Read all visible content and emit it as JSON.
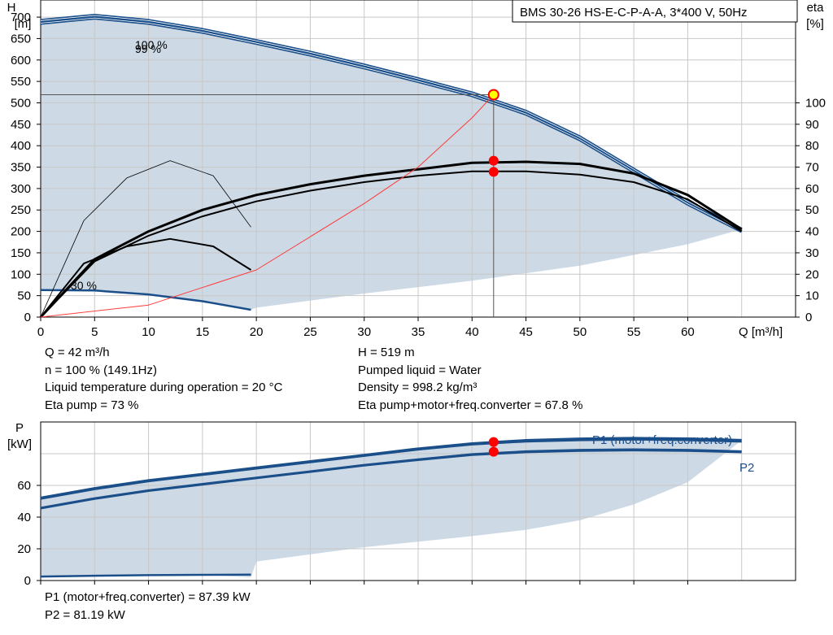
{
  "colors": {
    "curve": "#1b4f8a",
    "fill": "#cdd9e5",
    "grid": "#c8c8c8",
    "axis": "#000000",
    "op_point": "#ff0000",
    "op_point_yellow": "#ffff00",
    "system_curve": "#ff3b3b"
  },
  "title_box": "BMS 30-26 HS-E-C-P-A-A, 3*400 V, 50Hz",
  "chart_data": [
    {
      "type": "line",
      "y_axis_label": [
        "H",
        "[m]"
      ],
      "y2_axis_label": [
        "eta",
        "[%]"
      ],
      "x_axis_label": "Q [m³/h]",
      "xlim": [
        0,
        70
      ],
      "ylim": [
        0,
        740
      ],
      "y2lim": [
        0,
        148
      ],
      "x_ticks": [
        0,
        5,
        10,
        15,
        20,
        25,
        30,
        35,
        40,
        45,
        50,
        55,
        60
      ],
      "y_ticks": [
        0,
        50,
        100,
        150,
        200,
        250,
        300,
        350,
        400,
        450,
        500,
        550,
        600,
        650,
        700
      ],
      "y2_ticks": [
        0,
        10,
        20,
        30,
        40,
        50,
        60,
        70,
        80,
        90,
        100
      ],
      "curve_labels": [
        "100 %",
        "99 %",
        "30 %"
      ],
      "grid": true,
      "series": [
        {
          "name": "100 %",
          "kind": "H",
          "x": [
            0,
            5,
            10,
            15,
            20,
            25,
            30,
            35,
            40,
            45,
            50,
            55,
            60,
            65
          ],
          "y": [
            692,
            704,
            692,
            671,
            645,
            618,
            588,
            556,
            523,
            480,
            420,
            345,
            270,
            205
          ]
        },
        {
          "name": "99 %",
          "kind": "H",
          "x": [
            0,
            5,
            10,
            15,
            20,
            25,
            30,
            35,
            40,
            45,
            50,
            55,
            60,
            65
          ],
          "y": [
            686,
            698,
            686,
            665,
            639,
            612,
            582,
            550,
            517,
            474,
            414,
            339,
            264,
            200
          ]
        },
        {
          "name": "",
          "kind": "H_min",
          "x": [
            0,
            5,
            10,
            15,
            19.5
          ],
          "y": [
            63,
            62,
            53,
            37,
            17
          ]
        },
        {
          "name": "",
          "kind": "eta_100",
          "x": [
            0,
            5,
            10,
            15,
            20,
            25,
            30,
            35,
            40,
            45,
            50,
            55,
            60,
            65
          ],
          "y": [
            0,
            27,
            40,
            50,
            57,
            62,
            66,
            69,
            72,
            72.5,
            71.5,
            67,
            57,
            41
          ]
        },
        {
          "name": "",
          "kind": "eta_op",
          "x": [
            0,
            5,
            10,
            15,
            20,
            25,
            30,
            35,
            40,
            45,
            50,
            55,
            60,
            65
          ],
          "y": [
            0,
            26,
            38,
            47,
            54,
            59,
            63,
            66,
            68,
            68,
            66.5,
            63,
            55,
            40
          ]
        },
        {
          "name": "",
          "kind": "eta_30",
          "x": [
            0,
            4,
            8,
            12,
            16,
            19.5
          ],
          "y": [
            0,
            25,
            33,
            36.5,
            33,
            22
          ]
        },
        {
          "name": "",
          "kind": "eta_thin",
          "x": [
            0,
            4,
            8,
            12,
            16,
            19.5
          ],
          "y": [
            0,
            45,
            65,
            73,
            66,
            42
          ]
        },
        {
          "name": "",
          "kind": "system",
          "x": [
            0,
            10,
            20,
            30,
            35,
            40,
            42
          ],
          "y": [
            0,
            28,
            110,
            265,
            350,
            465,
            519
          ]
        }
      ],
      "area": {
        "x": [
          0,
          5,
          10,
          15,
          20,
          25,
          30,
          35,
          40,
          45,
          50,
          55,
          60,
          65,
          60,
          50,
          40,
          30,
          20,
          19.5,
          15,
          10,
          5,
          0
        ],
        "y": [
          692,
          704,
          692,
          671,
          645,
          618,
          588,
          556,
          523,
          480,
          420,
          345,
          270,
          205,
          170,
          120,
          85,
          55,
          22,
          17,
          37,
          53,
          62,
          63
        ]
      },
      "operating_point": {
        "Q": 42,
        "H": 519,
        "eta_values": [
          73,
          67.8
        ]
      }
    },
    {
      "type": "line",
      "y_axis_label": [
        "P",
        "[kW]"
      ],
      "xlim": [
        0,
        70
      ],
      "ylim": [
        0,
        100
      ],
      "x_ticks": [
        0,
        5,
        10,
        15,
        20,
        25,
        30,
        35,
        40,
        45,
        50,
        55,
        60
      ],
      "y_ticks": [
        0,
        20,
        40,
        60
      ],
      "grid": true,
      "series": [
        {
          "name": "P1 (motor+freq.converter)",
          "x": [
            0,
            5,
            10,
            15,
            20,
            25,
            30,
            35,
            40,
            45,
            50,
            55,
            60,
            65
          ],
          "y": [
            52,
            58,
            63,
            67,
            71,
            75,
            79,
            83,
            86.3,
            88.3,
            89.3,
            89.7,
            89.4,
            88.4
          ]
        },
        {
          "name": "P1 (motor+freq.converter)",
          "x": [
            0,
            5,
            10,
            15,
            20,
            25,
            30,
            35,
            40,
            45,
            50,
            55,
            60,
            65
          ],
          "y": [
            51.5,
            57.5,
            62.5,
            66.5,
            70.5,
            74.5,
            78.5,
            82.5,
            85.7,
            87.6,
            88.4,
            88.8,
            88.4,
            87.5
          ]
        },
        {
          "name": "P2",
          "x": [
            0,
            5,
            10,
            15,
            20,
            25,
            30,
            35,
            40,
            45,
            50,
            55,
            60,
            65
          ],
          "y": [
            46,
            52,
            57,
            61,
            65,
            69,
            73,
            76.5,
            79.8,
            81.6,
            82.5,
            82.8,
            82.5,
            81.6
          ]
        },
        {
          "name": "P2",
          "x": [
            0,
            5,
            10,
            15,
            20,
            25,
            30,
            35,
            40,
            45,
            50,
            55,
            60,
            65
          ],
          "y": [
            45.4,
            51.4,
            56.4,
            60.4,
            64.4,
            68.4,
            72.4,
            75.9,
            79.1,
            80.8,
            81.7,
            82.0,
            81.7,
            80.8
          ]
        },
        {
          "name": "",
          "kind": "P_min",
          "x": [
            0,
            5,
            10,
            15,
            19.5
          ],
          "y": [
            2.5,
            3.0,
            3.4,
            3.6,
            3.7
          ]
        }
      ],
      "area": {
        "x": [
          0,
          5,
          10,
          15,
          20,
          25,
          30,
          35,
          40,
          45,
          50,
          55,
          60,
          65,
          60,
          55,
          50,
          45,
          40,
          30,
          20,
          19.5,
          15,
          10,
          5,
          0
        ],
        "y": [
          52,
          58,
          63,
          67,
          71,
          75,
          79,
          83,
          86.3,
          88.3,
          89.3,
          89.7,
          89.4,
          88.4,
          62,
          48,
          38,
          32,
          28,
          21,
          12,
          2,
          3.6,
          3.4,
          3,
          2.5
        ]
      },
      "operating_point": {
        "Q": 42,
        "P1": 87.39,
        "P2": 81.19
      }
    }
  ],
  "info_block1": [
    "Q = 42 m³/h",
    "n = 100 % (149.1Hz)",
    "Liquid temperature during operation = 20 °C",
    "Eta pump = 73 %"
  ],
  "info_block2": [
    "H = 519 m",
    "Pumped liquid = Water",
    "Density = 998.2 kg/m³",
    "Eta pump+motor+freq.converter = 67.8 %"
  ],
  "info_block3": [
    "P1 (motor+freq.converter) = 87.39 kW",
    "P2 = 81.19 kW"
  ]
}
